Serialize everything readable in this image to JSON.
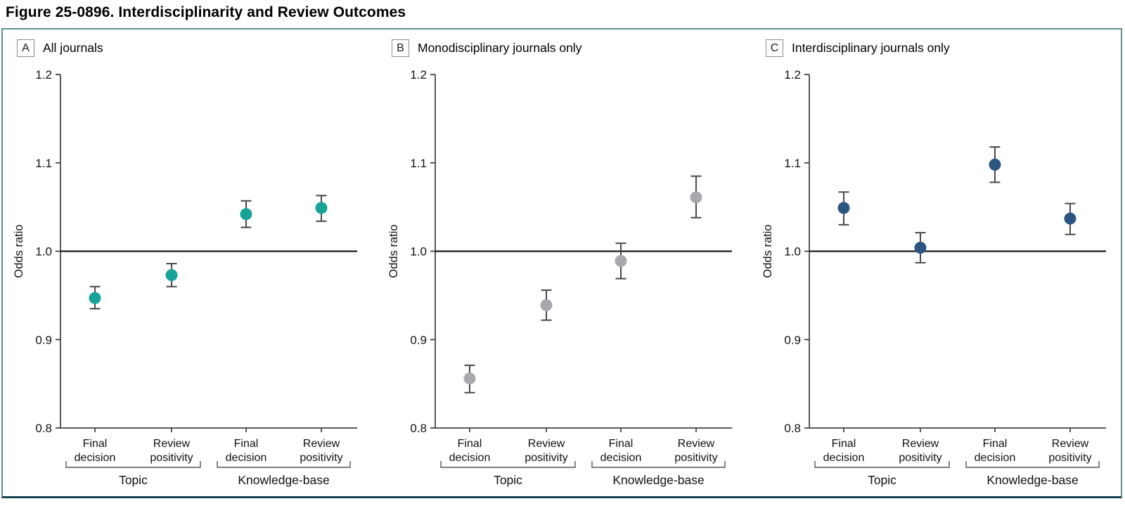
{
  "title": "Figure 25-0896. Interdisciplinarity and Review Outcomes",
  "figure": {
    "ylabel": "Odds ratio",
    "ylim": [
      0.8,
      1.2
    ],
    "yticks": [
      "0.8",
      "0.9",
      "1.0",
      "1.1",
      "1.2"
    ],
    "reference_line": 1.0,
    "categories": [
      "Final decision",
      "Review positivity",
      "Final decision",
      "Review positivity"
    ],
    "group_labels": [
      "Topic",
      "Knowledge-base"
    ],
    "grid": "off",
    "legend": "none"
  },
  "colors": {
    "panel_a_marker": "#17a398",
    "panel_b_marker": "#a9a9ad",
    "panel_c_marker": "#2b5480",
    "error_bar": "#48484c",
    "axis": "#45454a",
    "reference_line": "#1a1a1a",
    "text": "#111111",
    "bracket": "#555558"
  },
  "chart_data": [
    {
      "type": "scatter",
      "panel_label": "A",
      "title": "All journals",
      "marker_color_key": "panel_a_marker",
      "ylabel": "Odds ratio",
      "ylim": [
        0.8,
        1.2
      ],
      "categories": [
        "Final decision",
        "Review positivity",
        "Final decision",
        "Review positivity"
      ],
      "groups": [
        "Topic",
        "Topic",
        "Knowledge-base",
        "Knowledge-base"
      ],
      "points": [
        {
          "label": "Final decision",
          "group": "Topic",
          "odds_ratio": 0.947,
          "ci_low": 0.935,
          "ci_high": 0.96
        },
        {
          "label": "Review positivity",
          "group": "Topic",
          "odds_ratio": 0.973,
          "ci_low": 0.96,
          "ci_high": 0.986
        },
        {
          "label": "Final decision",
          "group": "Knowledge-base",
          "odds_ratio": 1.042,
          "ci_low": 1.027,
          "ci_high": 1.057
        },
        {
          "label": "Review positivity",
          "group": "Knowledge-base",
          "odds_ratio": 1.049,
          "ci_low": 1.034,
          "ci_high": 1.063
        }
      ]
    },
    {
      "type": "scatter",
      "panel_label": "B",
      "title": "Monodisciplinary journals only",
      "marker_color_key": "panel_b_marker",
      "ylabel": "Odds ratio",
      "ylim": [
        0.8,
        1.2
      ],
      "categories": [
        "Final decision",
        "Review positivity",
        "Final decision",
        "Review positivity"
      ],
      "groups": [
        "Topic",
        "Topic",
        "Knowledge-base",
        "Knowledge-base"
      ],
      "points": [
        {
          "label": "Final decision",
          "group": "Topic",
          "odds_ratio": 0.856,
          "ci_low": 0.84,
          "ci_high": 0.871
        },
        {
          "label": "Review positivity",
          "group": "Topic",
          "odds_ratio": 0.939,
          "ci_low": 0.922,
          "ci_high": 0.956
        },
        {
          "label": "Final decision",
          "group": "Knowledge-base",
          "odds_ratio": 0.989,
          "ci_low": 0.969,
          "ci_high": 1.009
        },
        {
          "label": "Review positivity",
          "group": "Knowledge-base",
          "odds_ratio": 1.061,
          "ci_low": 1.038,
          "ci_high": 1.085
        }
      ]
    },
    {
      "type": "scatter",
      "panel_label": "C",
      "title": "Interdisciplinary journals only",
      "marker_color_key": "panel_c_marker",
      "ylabel": "Odds ratio",
      "ylim": [
        0.8,
        1.2
      ],
      "categories": [
        "Final decision",
        "Review positivity",
        "Final decision",
        "Review positivity"
      ],
      "groups": [
        "Topic",
        "Topic",
        "Knowledge-base",
        "Knowledge-base"
      ],
      "points": [
        {
          "label": "Final decision",
          "group": "Topic",
          "odds_ratio": 1.049,
          "ci_low": 1.03,
          "ci_high": 1.067
        },
        {
          "label": "Review positivity",
          "group": "Topic",
          "odds_ratio": 1.004,
          "ci_low": 0.987,
          "ci_high": 1.021
        },
        {
          "label": "Final decision",
          "group": "Knowledge-base",
          "odds_ratio": 1.098,
          "ci_low": 1.078,
          "ci_high": 1.118
        },
        {
          "label": "Review positivity",
          "group": "Knowledge-base",
          "odds_ratio": 1.037,
          "ci_low": 1.019,
          "ci_high": 1.054
        }
      ]
    }
  ]
}
